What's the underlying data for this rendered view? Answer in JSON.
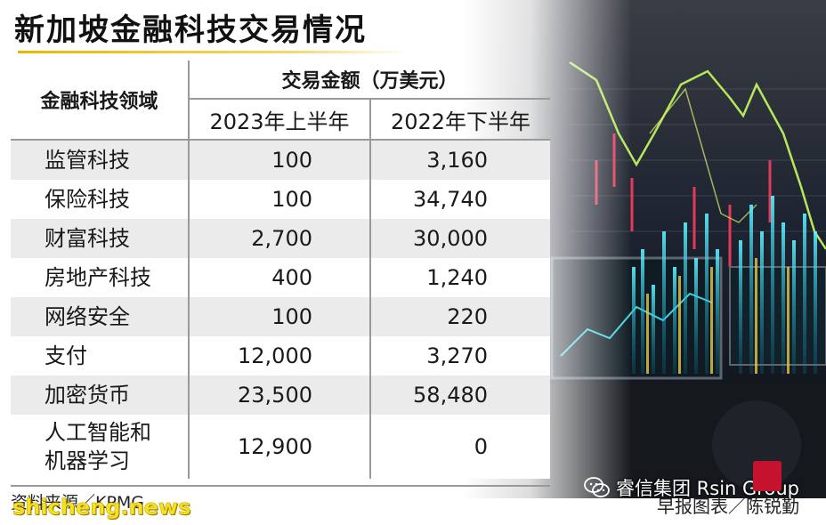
{
  "title": "新加坡金融科技交易情况",
  "table": {
    "domain_header": "金融科技领域",
    "group_header": "交易金额（万美元）",
    "year_headers": [
      "2023年上半年",
      "2022年下半年"
    ],
    "rows": [
      {
        "name": "监管科技",
        "h1_2023": "100",
        "h2_2022": "3,160"
      },
      {
        "name": "保险科技",
        "h1_2023": "100",
        "h2_2022": "34,740"
      },
      {
        "name": "财富科技",
        "h1_2023": "2,700",
        "h2_2022": "30,000"
      },
      {
        "name": "房地产科技",
        "h1_2023": "400",
        "h2_2022": "1,240"
      },
      {
        "name": "网络安全",
        "h1_2023": "100",
        "h2_2022": "220"
      },
      {
        "name": "支付",
        "h1_2023": "12,000",
        "h2_2022": "3,270"
      },
      {
        "name": "加密货币",
        "h1_2023": "23,500",
        "h2_2022": "58,480"
      },
      {
        "name_line1": "人工智能和",
        "name_line2": "机器学习",
        "h1_2023": "12,900",
        "h2_2022": "0"
      }
    ]
  },
  "footer": {
    "source": "资料来源／KPMG",
    "watermark": "shicheng.news",
    "credit": "早报图表／陈锐勤",
    "wechat_label": "睿信集团 Rsin Group"
  },
  "icons": {
    "wechat": "wechat-icon",
    "stamp": "zaobao-stamp"
  },
  "colors": {
    "title_rule": "#e6b800",
    "watermark": "#f6e21f",
    "row_shade": "#ebebeb",
    "stamp": "#c4122f"
  }
}
